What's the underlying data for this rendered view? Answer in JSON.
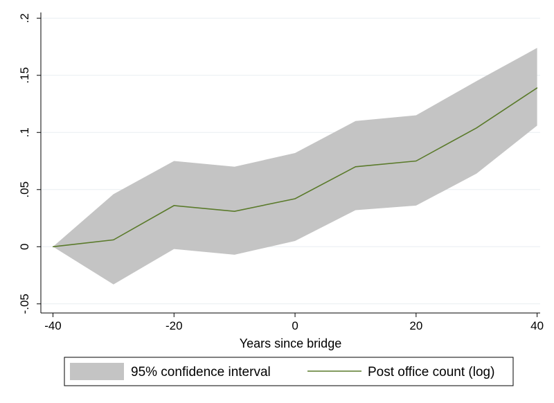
{
  "chart_data": {
    "type": "line",
    "title": "",
    "xlabel": "Years since bridge",
    "ylabel": "",
    "x": [
      -40,
      -30,
      -20,
      -10,
      0,
      10,
      20,
      30,
      40
    ],
    "xlim": [
      -42,
      40.5
    ],
    "ylim": [
      -0.058,
      0.205
    ],
    "xticks": [
      -40,
      -20,
      0,
      20,
      40
    ],
    "xtick_labels": [
      "-40",
      "-20",
      "0",
      "20",
      "40"
    ],
    "yticks": [
      -0.05,
      0,
      0.05,
      0.1,
      0.15,
      0.2
    ],
    "ytick_labels": [
      "-.05",
      "0",
      ".05",
      ".1",
      ".15",
      ".2"
    ],
    "grid": true,
    "legend_position": "bottom",
    "series": [
      {
        "name": "95% confidence interval",
        "kind": "band",
        "lower": [
          0,
          -0.033,
          -0.002,
          -0.007,
          0.005,
          0.032,
          0.036,
          0.064,
          0.106
        ],
        "upper": [
          0,
          0.046,
          0.075,
          0.07,
          0.082,
          0.11,
          0.115,
          0.145,
          0.174
        ],
        "color": "#c4c4c4"
      },
      {
        "name": "Post office count (log)",
        "kind": "line",
        "values": [
          0,
          0.006,
          0.036,
          0.031,
          0.042,
          0.07,
          0.075,
          0.104,
          0.139
        ],
        "color": "#5a7a2a"
      }
    ]
  }
}
